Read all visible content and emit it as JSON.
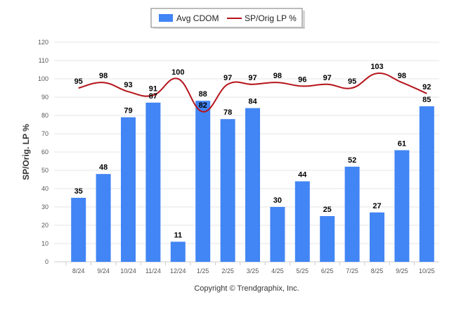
{
  "chart_data": {
    "type": "bar+line",
    "categories": [
      "8/24",
      "9/24",
      "10/24",
      "11/24",
      "12/24",
      "1/25",
      "2/25",
      "3/25",
      "4/25",
      "5/25",
      "6/25",
      "7/25",
      "8/25",
      "9/25",
      "10/25"
    ],
    "series": [
      {
        "name": "Avg CDOM",
        "kind": "bar",
        "color": "#4285f4",
        "values": [
          35,
          48,
          79,
          87,
          11,
          88,
          78,
          84,
          30,
          44,
          25,
          52,
          27,
          61,
          85
        ]
      },
      {
        "name": "SP/Orig LP %",
        "kind": "line",
        "color": "#b5141b",
        "values": [
          95,
          98,
          93,
          91,
          100,
          82,
          97,
          97,
          98,
          96,
          97,
          95,
          103,
          98,
          92
        ]
      }
    ],
    "ylabel": "SP/Orig. LP %",
    "ylim": [
      0,
      120
    ],
    "yticks": [
      0,
      10,
      20,
      30,
      40,
      50,
      60,
      70,
      80,
      90,
      100,
      110,
      120
    ],
    "legend": "top-center",
    "grid": true
  },
  "credit": "Copyright © Trendgraphix, Inc."
}
